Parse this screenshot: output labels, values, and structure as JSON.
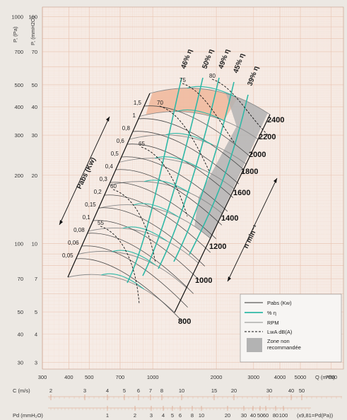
{
  "chart_data": {
    "type": "line",
    "axes": {
      "y_label_pa": "P, (Pa)",
      "y_label_mmh2o": "P, (mmH2O)",
      "x_label": "Q (m³/h)",
      "y_ticks_pa": [
        "1000",
        "700",
        "500",
        "400",
        "300",
        "200",
        "100",
        "70",
        "50",
        "40",
        "30"
      ],
      "y_ticks_mmh2o": [
        "100",
        "70",
        "50",
        "40",
        "30",
        "20",
        "10",
        "7",
        "5",
        "4",
        "3"
      ],
      "x_ticks": [
        "300",
        "400",
        "500",
        "700",
        "1000",
        "2000",
        "3000",
        "4000",
        "5000",
        "7000"
      ],
      "x_scale": "log",
      "y_scale": "log",
      "c_label": "C (m/s)",
      "c_ticks": [
        "2",
        "3",
        "4",
        "5",
        "6",
        "7",
        "8",
        "10",
        "15",
        "20",
        "30",
        "40",
        "50"
      ],
      "pd_label": "Pd (mmH₂O)",
      "pd_ticks": [
        "1",
        "2",
        "3",
        "4",
        "5",
        "6",
        "8",
        "10",
        "20",
        "30",
        "40",
        "50",
        "60",
        "80",
        "100"
      ],
      "pd_note": "(x9,81=Pd(Pa))"
    },
    "rpm_labels": [
      "800",
      "1000",
      "1200",
      "1400",
      "1600",
      "1800",
      "2000",
      "2200",
      "2400"
    ],
    "power_labels": [
      "0,05",
      "0,06",
      "0,08",
      "0,1",
      "0,15",
      "0,2",
      "0,3",
      "0,4",
      "0,5",
      "0,6",
      "0,8",
      "1",
      "1,5"
    ],
    "efficiency_labels": [
      "46% η",
      "50% η",
      "49% η",
      "45% η",
      "39% η"
    ],
    "noise_labels": [
      "55",
      "60",
      "65",
      "70",
      "75",
      "80"
    ],
    "annotations": {
      "pabs": "Pabs (Kw)",
      "n": "n  min⁻¹"
    },
    "legend": [
      {
        "label": "Pabs (Kw)",
        "style": "solid-dark"
      },
      {
        "label": "% η",
        "style": "solid-teal"
      },
      {
        "label": "RPM",
        "style": "solid-gray"
      },
      {
        "label": "LwA dB(A)",
        "style": "dashed"
      },
      {
        "label": "Zone non recommandée",
        "style": "gray-box"
      }
    ],
    "colors": {
      "efficiency": "#2fb8a6",
      "rpm": "#8a8a8a",
      "highlight": "#f0b79a",
      "zone": "#b3b3b3"
    }
  }
}
